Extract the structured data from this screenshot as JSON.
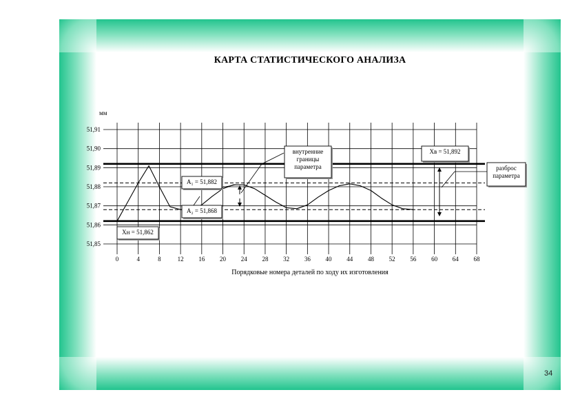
{
  "slide": {
    "title": "КАРТА СТАТИСТИЧЕСКОГО АНАЛИЗА",
    "page_number": "34",
    "frame_color": "#22c48e"
  },
  "chart_data": {
    "type": "line",
    "title": "КАРТА СТАТИСТИЧЕСКОГО АНАЛИЗА",
    "xlabel": "Порядковые номера деталей по ходу их изготовления",
    "ylabel": "мм",
    "xlim": [
      0,
      68
    ],
    "ylim": [
      51.85,
      51.91
    ],
    "x_ticks": [
      0,
      4,
      8,
      12,
      16,
      20,
      24,
      28,
      32,
      36,
      40,
      44,
      48,
      52,
      56,
      60,
      64,
      68
    ],
    "x_tick_labels": [
      "0",
      "4",
      "8",
      "12",
      "16",
      "20",
      "24",
      "28",
      "32",
      "36",
      "40",
      "44",
      "48",
      "52",
      "56",
      "60",
      "64",
      "68"
    ],
    "y_ticks": [
      51.85,
      51.86,
      51.87,
      51.88,
      51.89,
      51.9,
      51.91
    ],
    "y_tick_labels": [
      "51,85",
      "51,86",
      "51,87",
      "51,88",
      "51,89",
      "51,90",
      "51,91"
    ],
    "grid": "vertical",
    "series": [
      {
        "x": [
          0,
          2,
          4,
          6,
          8,
          10,
          12,
          14,
          16,
          18,
          20,
          22,
          24,
          26,
          28,
          30,
          32,
          34,
          36,
          38,
          40,
          42,
          44,
          46,
          48,
          50,
          52,
          54,
          56
        ],
        "y": [
          51.862,
          51.872,
          51.882,
          51.891,
          51.88,
          51.8695,
          51.868,
          51.868,
          51.8705,
          51.875,
          51.879,
          51.881,
          51.881,
          51.879,
          51.8755,
          51.872,
          51.869,
          51.8685,
          51.8705,
          51.8745,
          51.878,
          51.8805,
          51.8815,
          51.8805,
          51.878,
          51.874,
          51.8705,
          51.8685,
          51.868
        ]
      }
    ],
    "reference_lines": [
      {
        "name": "X_B",
        "value": 51.892,
        "style": "thick"
      },
      {
        "name": "A_1",
        "value": 51.882,
        "style": "dashed"
      },
      {
        "name": "A_2",
        "value": 51.868,
        "style": "dashed"
      },
      {
        "name": "X_H",
        "value": 51.862,
        "style": "thick"
      }
    ],
    "annotations": {
      "upper_limit": "Xв = 51,892",
      "a1": "A₁ = 51,882",
      "a2": "A₂ = 51,868",
      "lower_limit": "Xн = 51,862",
      "inner_bounds": [
        "внутренние",
        "границы",
        "параметра"
      ],
      "spread": [
        "разброс",
        "параметра"
      ]
    }
  }
}
